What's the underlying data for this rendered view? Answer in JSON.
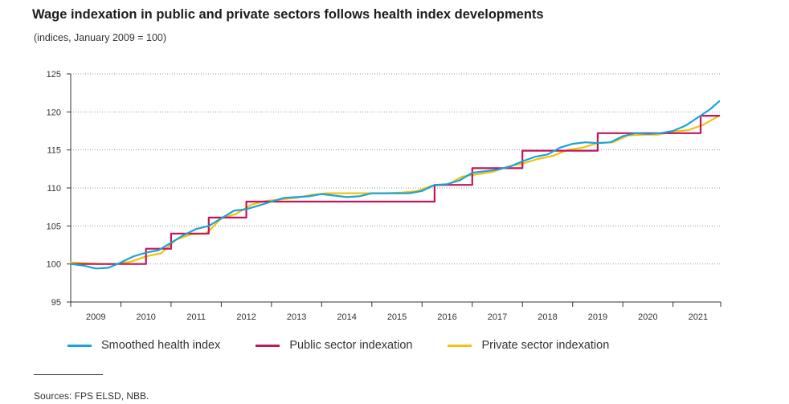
{
  "title": "Wage indexation in public and private sectors follows health index developments",
  "subtitle": "(indices, January 2009 = 100)",
  "source": "Sources: FPS ELSD, NBB.",
  "colors": {
    "health": "#1aa3d9",
    "public": "#c4145a",
    "private": "#f2c10f",
    "grid": "#999999",
    "axis": "#333333"
  },
  "legend": [
    {
      "label": "Smoothed health index",
      "color": "#1aa3d9"
    },
    {
      "label": "Public sector indexation",
      "color": "#c4145a"
    },
    {
      "label": "Private sector indexation",
      "color": "#f2c10f"
    }
  ],
  "chart_data": {
    "type": "line",
    "ylim": [
      95,
      125
    ],
    "yticks": [
      95,
      100,
      105,
      110,
      115,
      120,
      125
    ],
    "xlim": [
      2009.0,
      2021.95
    ],
    "xticks": [
      "2009",
      "2010",
      "2011",
      "2012",
      "2013",
      "2014",
      "2015",
      "2016",
      "2017",
      "2018",
      "2019",
      "2020",
      "2021"
    ],
    "grid": "horizontal dotted",
    "legend_position": "bottom",
    "series": [
      {
        "name": "Smoothed health index",
        "color": "#1aa3d9",
        "x": [
          2009.0,
          2009.25,
          2009.5,
          2009.75,
          2010.0,
          2010.25,
          2010.5,
          2010.75,
          2011.0,
          2011.25,
          2011.5,
          2011.75,
          2012.0,
          2012.25,
          2012.5,
          2012.75,
          2013.0,
          2013.25,
          2013.5,
          2013.75,
          2014.0,
          2014.25,
          2014.5,
          2014.75,
          2015.0,
          2015.25,
          2015.5,
          2015.75,
          2016.0,
          2016.25,
          2016.5,
          2016.75,
          2017.0,
          2017.25,
          2017.5,
          2017.75,
          2018.0,
          2018.25,
          2018.5,
          2018.75,
          2019.0,
          2019.25,
          2019.5,
          2019.75,
          2020.0,
          2020.25,
          2020.5,
          2020.75,
          2021.0,
          2021.25,
          2021.5,
          2021.75,
          2021.92
        ],
        "y": [
          100.0,
          99.8,
          99.4,
          99.5,
          100.2,
          101.0,
          101.5,
          101.8,
          102.8,
          103.8,
          104.6,
          105.0,
          106.0,
          107.0,
          107.2,
          107.7,
          108.2,
          108.7,
          108.8,
          108.9,
          109.2,
          109.0,
          108.8,
          108.9,
          109.3,
          109.3,
          109.3,
          109.3,
          109.6,
          110.4,
          110.5,
          111.0,
          112.0,
          112.2,
          112.4,
          112.8,
          113.5,
          114.1,
          114.4,
          115.3,
          115.8,
          116.0,
          115.9,
          116.0,
          116.8,
          117.2,
          117.1,
          117.2,
          117.5,
          118.2,
          119.3,
          120.4,
          121.4
        ]
      },
      {
        "name": "Public sector indexation",
        "color": "#c4145a",
        "x": [
          2009.0,
          2010.5,
          2010.5,
          2011.0,
          2011.0,
          2011.75,
          2011.75,
          2012.0,
          2012.0,
          2012.5,
          2012.5,
          2016.25,
          2016.25,
          2017.0,
          2017.0,
          2018.0,
          2018.0,
          2019.5,
          2019.5,
          2020.25,
          2020.25,
          2021.55,
          2021.55,
          2021.92
        ],
        "y": [
          100.0,
          100.0,
          102.0,
          102.0,
          104.0,
          104.0,
          106.1,
          106.1,
          106.1,
          106.1,
          108.2,
          108.2,
          110.4,
          110.4,
          112.6,
          112.6,
          114.9,
          114.9,
          117.2,
          117.2,
          117.2,
          117.2,
          119.5,
          119.5
        ]
      },
      {
        "name": "Private sector indexation",
        "color": "#f2c10f",
        "x": [
          2009.0,
          2009.3,
          2009.6,
          2009.9,
          2010.2,
          2010.5,
          2010.8,
          2011.1,
          2011.4,
          2011.7,
          2012.0,
          2012.3,
          2012.6,
          2012.9,
          2013.2,
          2013.5,
          2013.8,
          2014.1,
          2014.4,
          2014.7,
          2015.0,
          2015.3,
          2015.6,
          2015.9,
          2016.2,
          2016.5,
          2016.8,
          2017.1,
          2017.4,
          2017.7,
          2018.0,
          2018.3,
          2018.6,
          2018.9,
          2019.2,
          2019.5,
          2019.8,
          2020.1,
          2020.4,
          2020.7,
          2021.0,
          2021.3,
          2021.6,
          2021.92
        ],
        "y": [
          100.2,
          100.1,
          100.0,
          100.0,
          100.3,
          101.0,
          101.4,
          103.2,
          103.9,
          104.0,
          106.0,
          106.6,
          107.8,
          108.3,
          108.5,
          108.7,
          109.1,
          109.3,
          109.3,
          109.3,
          109.3,
          109.3,
          109.4,
          109.6,
          110.3,
          110.4,
          111.5,
          111.8,
          112.1,
          112.8,
          113.2,
          113.8,
          114.2,
          115.0,
          115.3,
          115.9,
          116.0,
          116.9,
          117.0,
          117.0,
          117.4,
          117.6,
          118.3,
          119.5
        ]
      }
    ]
  }
}
